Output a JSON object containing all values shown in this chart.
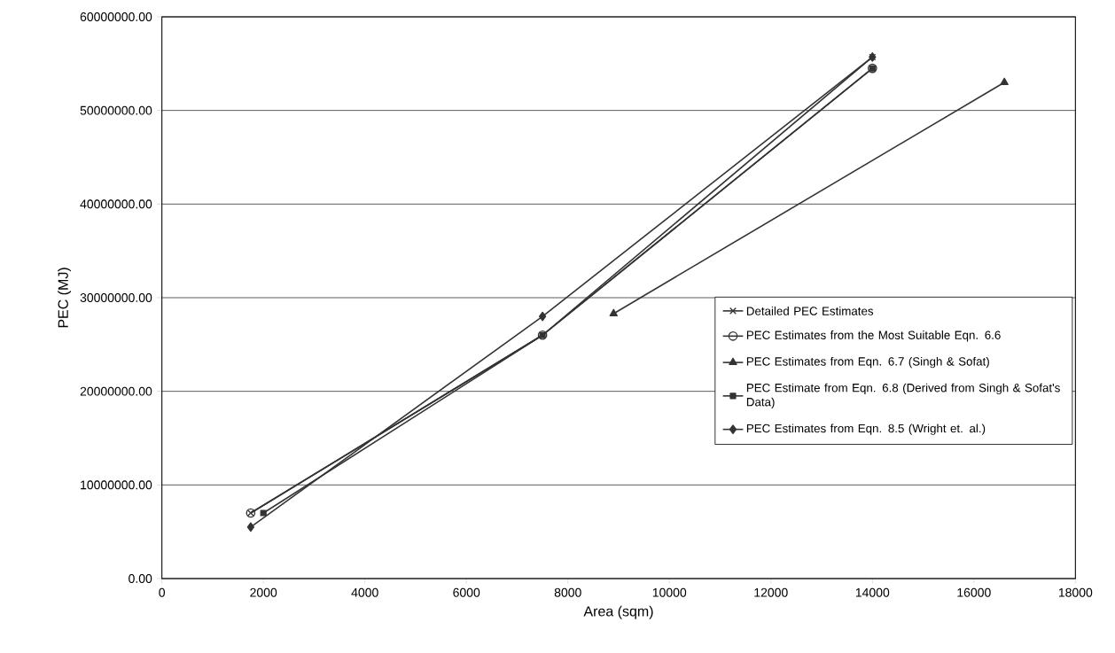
{
  "chart_data": {
    "type": "line",
    "xlabel": "Area (sqm)",
    "ylabel": "PEC (MJ)",
    "xlim": [
      0,
      18000
    ],
    "xticks": [
      0,
      2000,
      4000,
      6000,
      8000,
      10000,
      12000,
      14000,
      16000,
      18000
    ],
    "ylim": [
      0,
      60000000
    ],
    "yticks": [
      {
        "value": 0,
        "label": "0.00"
      },
      {
        "value": 10000000,
        "label": "10000000.00"
      },
      {
        "value": 20000000,
        "label": "20000000.00"
      },
      {
        "value": 30000000,
        "label": "30000000.00"
      },
      {
        "value": 40000000,
        "label": "40000000.00"
      },
      {
        "value": 50000000,
        "label": "50000000.00"
      },
      {
        "value": 60000000,
        "label": "60000000.00"
      }
    ],
    "grid": "y",
    "legend": "right",
    "series": [
      {
        "name": "Detailed PEC Estimates",
        "color": "#333333",
        "marker": "cross",
        "x": [
          1750,
          7500,
          14000
        ],
        "values": [
          7000000,
          26000000,
          55700000
        ]
      },
      {
        "name": "PEC Estimates from the Most Suitable Eqn. 6.6",
        "color": "#333333",
        "marker": "circle",
        "x": [
          1750,
          7500,
          14000
        ],
        "values": [
          7000000,
          26000000,
          54500000
        ]
      },
      {
        "name": "PEC Estimates from Eqn. 6.7 (Singh & Sofat)",
        "color": "#333333",
        "marker": "triangle",
        "x": [
          8900,
          16600
        ],
        "values": [
          28300000,
          53000000
        ]
      },
      {
        "name": "PEC Estimate from Eqn. 6.8 (Derived from Singh & Sofat's Data)",
        "color": "#333333",
        "marker": "square",
        "x": [
          2000,
          7500,
          14000
        ],
        "values": [
          7000000,
          26000000,
          54500000
        ]
      },
      {
        "name": "PEC Estimates from Eqn. 8.5 (Wright et. al.)",
        "color": "#333333",
        "marker": "diamond",
        "x": [
          1750,
          7500,
          14000
        ],
        "values": [
          5500000,
          28000000,
          55700000
        ]
      }
    ]
  }
}
